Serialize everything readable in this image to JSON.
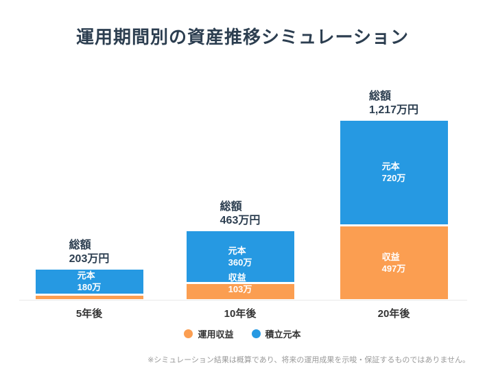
{
  "title": "運用期間別の資産推移シミュレーション",
  "colors": {
    "profit": "#FB9E51",
    "principal": "#2699E2",
    "heading": "#2C3E50",
    "axis": "#333333",
    "note": "#999999",
    "baseline": "#E8E8E8"
  },
  "chart_data": {
    "type": "bar",
    "stacked": true,
    "value_unit": "万円",
    "ylim": [
      0,
      1300
    ],
    "grid": false,
    "legend_position": "bottom",
    "categories": [
      "5年後",
      "10年後",
      "20年後"
    ],
    "series": [
      {
        "name": "運用収益",
        "color_key": "profit",
        "values": [
          23,
          103,
          497
        ]
      },
      {
        "name": "積立元本",
        "color_key": "principal",
        "values": [
          180,
          360,
          720
        ]
      }
    ],
    "bars": [
      {
        "category": "5年後",
        "total_value": 203,
        "total_title": "総額",
        "total_label": "203万円",
        "segments": [
          {
            "series_index": 0,
            "value": 23,
            "label_title": null,
            "label_value": null
          },
          {
            "series_index": 1,
            "value": 180,
            "label_title": "元本",
            "label_value": "180万"
          }
        ]
      },
      {
        "category": "10年後",
        "total_value": 463,
        "total_title": "総額",
        "total_label": "463万円",
        "segments": [
          {
            "series_index": 0,
            "value": 103,
            "label_title": "収益",
            "label_value": "103万"
          },
          {
            "series_index": 1,
            "value": 360,
            "label_title": "元本",
            "label_value": "360万"
          }
        ]
      },
      {
        "category": "20年後",
        "total_value": 1217,
        "total_title": "総額",
        "total_label": "1,217万円",
        "segments": [
          {
            "series_index": 0,
            "value": 497,
            "label_title": "収益",
            "label_value": "497万"
          },
          {
            "series_index": 1,
            "value": 720,
            "label_title": "元本",
            "label_value": "720万"
          }
        ]
      }
    ]
  },
  "legend": [
    {
      "label": "運用収益",
      "color_key": "profit"
    },
    {
      "label": "積立元本",
      "color_key": "principal"
    }
  ],
  "note": "※シミュレーション結果は概算であり、将来の運用成果を示唆・保証するものではありません。"
}
